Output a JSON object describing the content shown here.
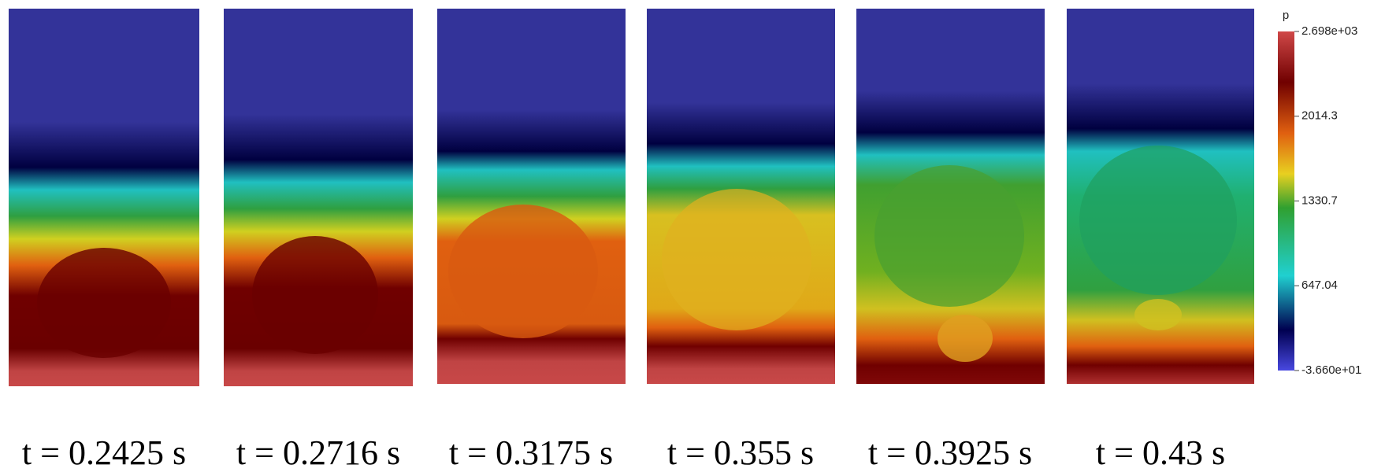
{
  "panels": [
    {
      "label": "t = 0.2425 s"
    },
    {
      "label": "t = 0.2716 s"
    },
    {
      "label": "t = 0.3175 s"
    },
    {
      "label": "t = 0.355 s"
    },
    {
      "label": "t = 0.3925 s"
    },
    {
      "label": "t = 0.43 s"
    }
  ],
  "colorbar": {
    "title": "p",
    "range": [
      -36.6,
      2698
    ],
    "ticks": [
      {
        "value": 2698,
        "label": "2.698e+03"
      },
      2014.3,
      1330.7,
      647.04,
      {
        "value": -36.6,
        "label": "-3.660e+01"
      }
    ]
  }
}
